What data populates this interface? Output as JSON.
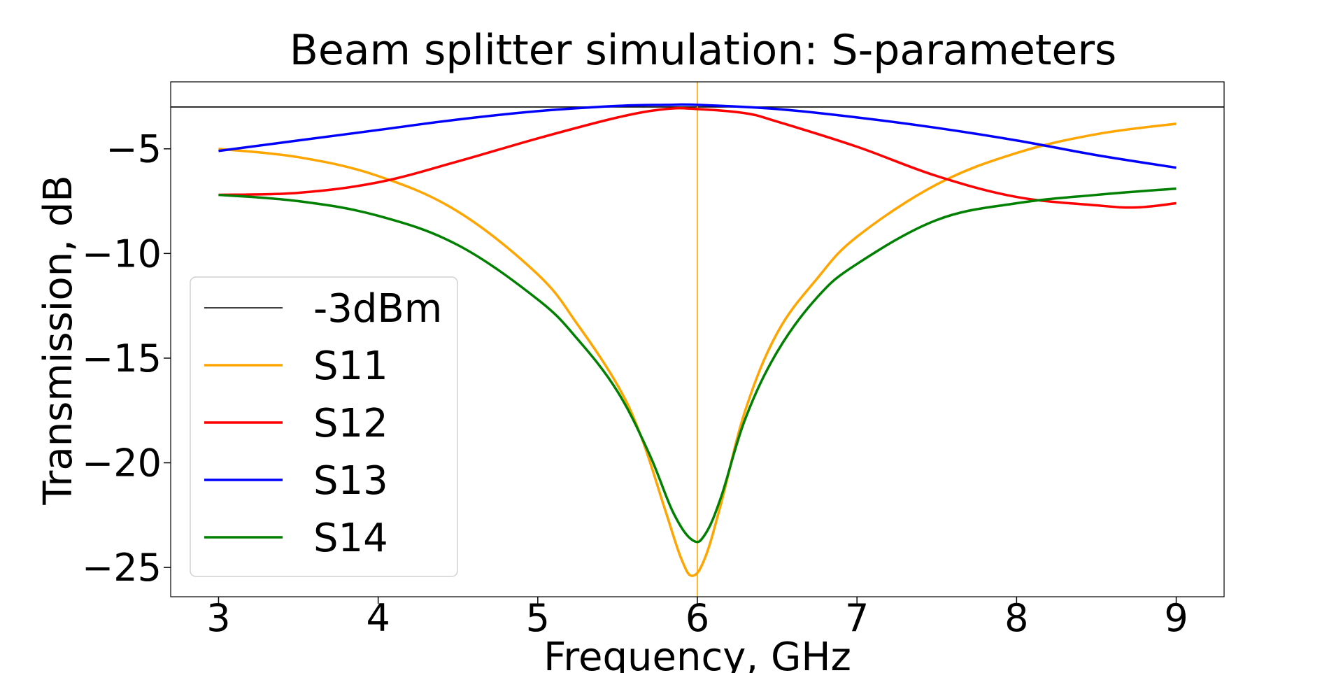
{
  "chart_data": {
    "type": "line",
    "title": "Beam splitter simulation:  S-parameters",
    "xlabel": "Frequency, GHz",
    "ylabel": "Transmission, dB",
    "xlim": [
      2.7,
      9.3
    ],
    "ylim": [
      -26.4,
      -1.8
    ],
    "xticks": [
      3,
      4,
      5,
      6,
      7,
      8,
      9
    ],
    "yticks": [
      -5,
      -10,
      -15,
      -20,
      -25
    ],
    "xtick_labels": [
      "3",
      "4",
      "5",
      "6",
      "7",
      "8",
      "9"
    ],
    "ytick_labels": [
      "−5",
      "−10",
      "−15",
      "−20",
      "−25"
    ],
    "grid": false,
    "legend_position": "lower-left",
    "reference_lines": [
      {
        "name": "-3dBm",
        "orientation": "horizontal",
        "y": -3,
        "color": "#000000"
      },
      {
        "orientation": "vertical",
        "x": 6,
        "color": "#FFA500"
      }
    ],
    "series": [
      {
        "name": "S11",
        "color": "#FFA500",
        "x": [
          3.0,
          3.5,
          4.0,
          4.5,
          5.0,
          5.25,
          5.5,
          5.65,
          5.8,
          5.9,
          5.97,
          6.05,
          6.15,
          6.3,
          6.5,
          6.75,
          7.0,
          7.5,
          8.0,
          8.5,
          9.0
        ],
        "y": [
          -5.0,
          -5.4,
          -6.3,
          -8.0,
          -11.0,
          -13.4,
          -16.3,
          -18.8,
          -22.3,
          -24.6,
          -25.4,
          -24.5,
          -21.9,
          -17.5,
          -13.8,
          -11.2,
          -9.2,
          -6.7,
          -5.2,
          -4.3,
          -3.8
        ]
      },
      {
        "name": "S12",
        "color": "#FF0000",
        "x": [
          3.0,
          3.5,
          4.0,
          4.5,
          5.0,
          5.5,
          5.8,
          6.0,
          6.3,
          6.5,
          7.0,
          7.5,
          8.0,
          8.5,
          8.75,
          9.0
        ],
        "y": [
          -7.2,
          -7.1,
          -6.6,
          -5.6,
          -4.5,
          -3.5,
          -3.1,
          -3.1,
          -3.3,
          -3.7,
          -4.9,
          -6.3,
          -7.3,
          -7.7,
          -7.8,
          -7.6
        ]
      },
      {
        "name": "S13",
        "color": "#0000FF",
        "x": [
          3.0,
          3.5,
          4.0,
          4.5,
          5.0,
          5.5,
          5.8,
          6.0,
          6.5,
          7.0,
          7.5,
          8.0,
          8.5,
          9.0
        ],
        "y": [
          -5.1,
          -4.6,
          -4.1,
          -3.6,
          -3.2,
          -2.95,
          -2.9,
          -2.9,
          -3.1,
          -3.5,
          -4.0,
          -4.6,
          -5.3,
          -5.9
        ]
      },
      {
        "name": "S14",
        "color": "#008000",
        "x": [
          3.0,
          3.5,
          4.0,
          4.5,
          5.0,
          5.25,
          5.5,
          5.7,
          5.85,
          5.97,
          6.05,
          6.15,
          6.3,
          6.5,
          6.75,
          7.0,
          7.5,
          8.0,
          8.5,
          9.0
        ],
        "y": [
          -7.2,
          -7.5,
          -8.2,
          -9.6,
          -12.2,
          -14.1,
          -16.6,
          -19.6,
          -22.4,
          -23.7,
          -23.4,
          -21.6,
          -17.9,
          -14.7,
          -12.1,
          -10.5,
          -8.4,
          -7.6,
          -7.2,
          -6.9
        ]
      }
    ]
  }
}
